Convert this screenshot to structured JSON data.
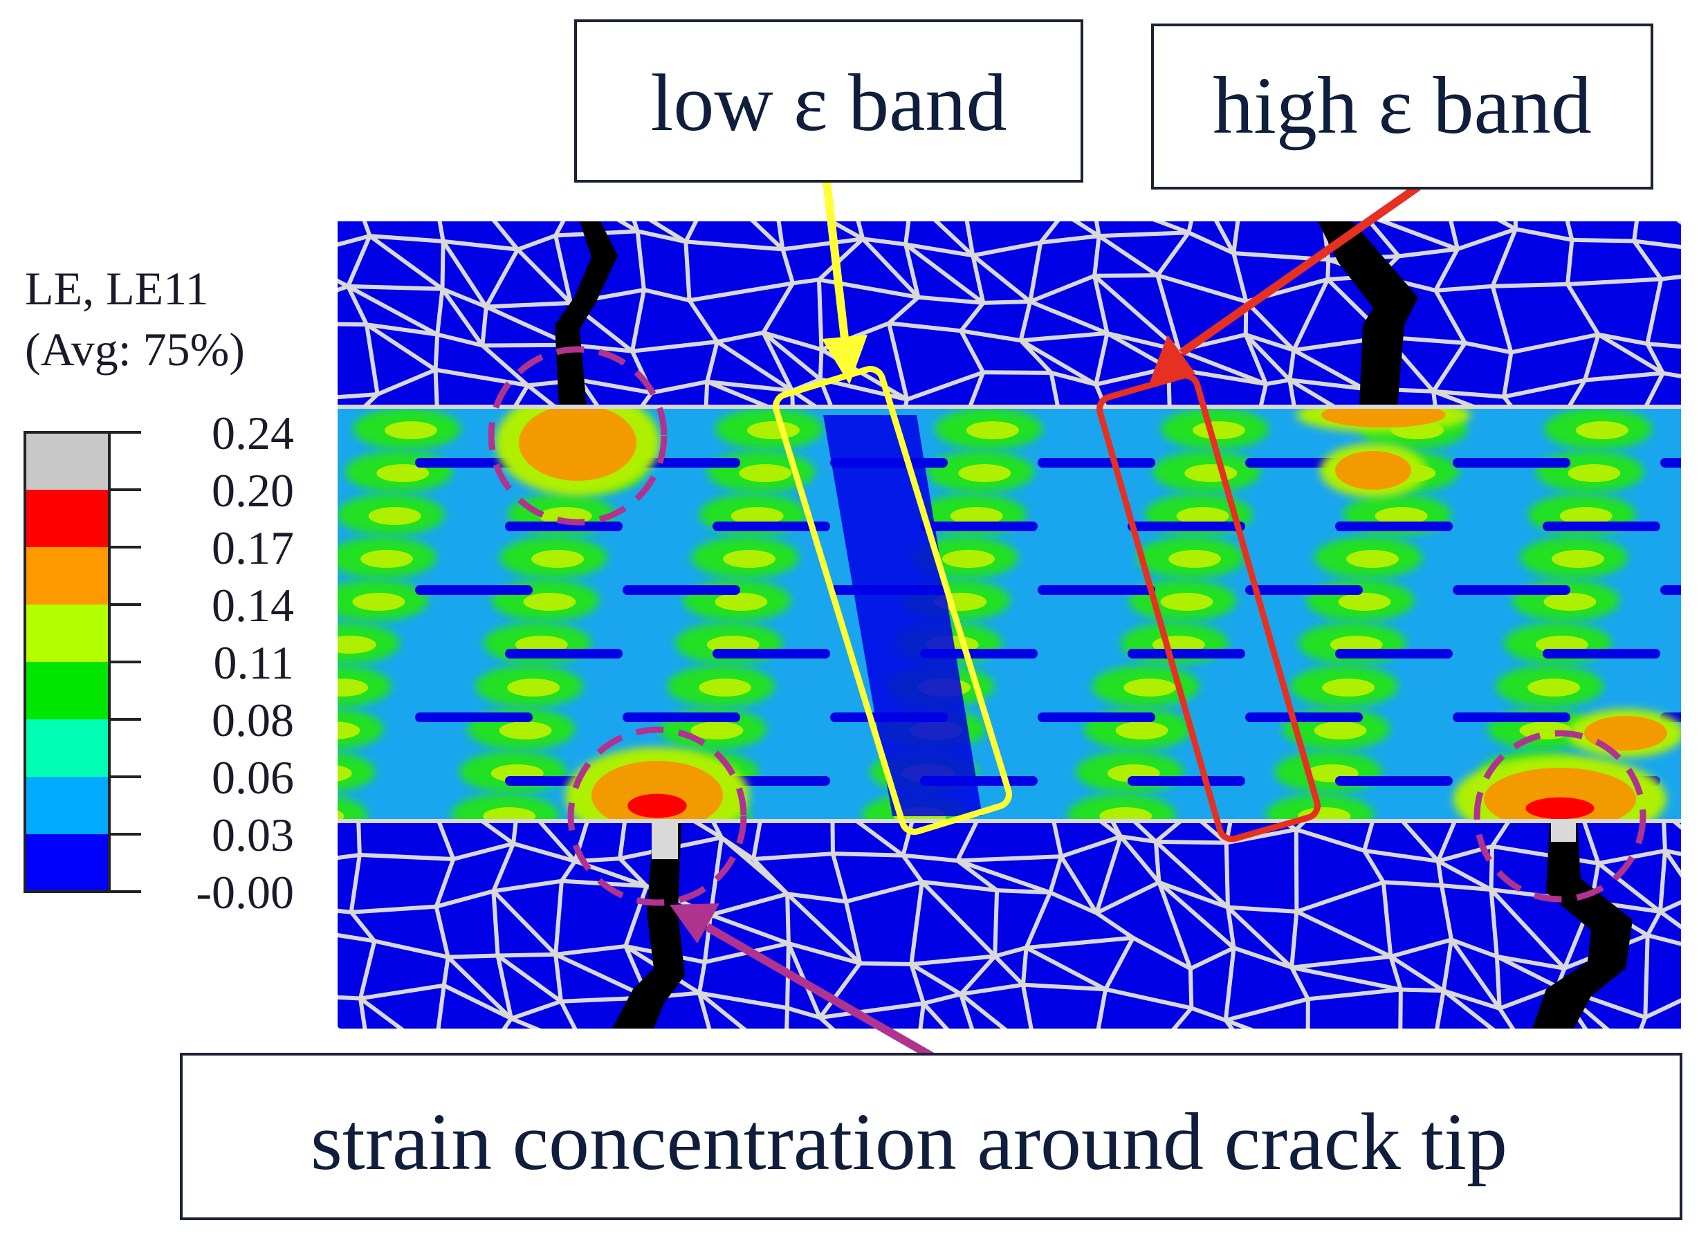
{
  "legend": {
    "title_line1": "LE, LE11",
    "title_line2": "(Avg: 75%)",
    "levels": [
      "0.24",
      "0.20",
      "0.17",
      "0.14",
      "0.11",
      "0.08",
      "0.06",
      "0.03",
      "-0.00"
    ],
    "colors": [
      "#c8c8c8",
      "#ff0000",
      "#ff9900",
      "#b4ff00",
      "#00e600",
      "#00ffb4",
      "#00aaff",
      "#0000ff"
    ]
  },
  "labels": {
    "low_band": "low ε band",
    "high_band": "high ε band",
    "crack_tip": "strain concentration around crack tip"
  },
  "colors": {
    "grain_blue": "#0000e6",
    "matrix_light_blue": "#1aa6ee",
    "green": "#22e022",
    "yellow_green": "#aef000",
    "orange": "#f29a00",
    "red": "#ff0000",
    "grain_boundary": "#d9d9d9",
    "crack": "#000000",
    "annotation_yellow": "#ffff33",
    "annotation_red": "#e63022",
    "annotation_magenta": "#b0338f",
    "label_text": "#0f1e3c"
  }
}
